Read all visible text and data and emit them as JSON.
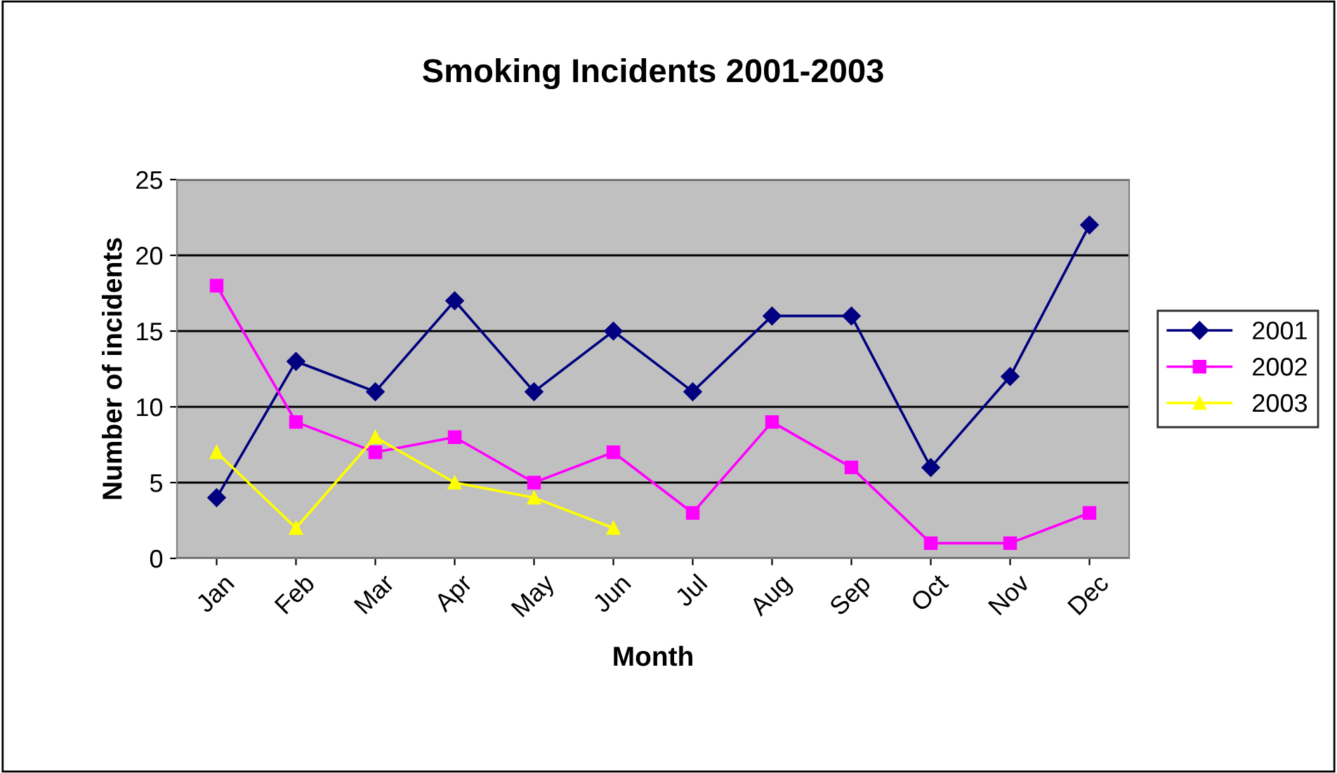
{
  "chart_data": {
    "type": "line",
    "title": "Smoking Incidents 2001-2003",
    "xlabel": "Month",
    "ylabel": "Number of incidents",
    "categories": [
      "Jan",
      "Feb",
      "Mar",
      "Apr",
      "May",
      "Jun",
      "Jul",
      "Aug",
      "Sep",
      "Oct",
      "Nov",
      "Dec"
    ],
    "series": [
      {
        "name": "2001",
        "color": "#000080",
        "marker": "diamond",
        "values": [
          4,
          13,
          11,
          17,
          11,
          15,
          11,
          16,
          16,
          6,
          12,
          22
        ]
      },
      {
        "name": "2002",
        "color": "#ff00ff",
        "marker": "square",
        "values": [
          18,
          9,
          7,
          8,
          5,
          7,
          3,
          9,
          6,
          1,
          1,
          3
        ]
      },
      {
        "name": "2003",
        "color": "#ffff00",
        "marker": "triangle",
        "values": [
          7,
          2,
          8,
          5,
          4,
          2,
          null,
          null,
          null,
          null,
          null,
          null
        ]
      }
    ],
    "ylim": [
      0,
      25
    ],
    "yticks": [
      0,
      5,
      10,
      15,
      20,
      25
    ],
    "grid": "y",
    "legend": "right"
  }
}
